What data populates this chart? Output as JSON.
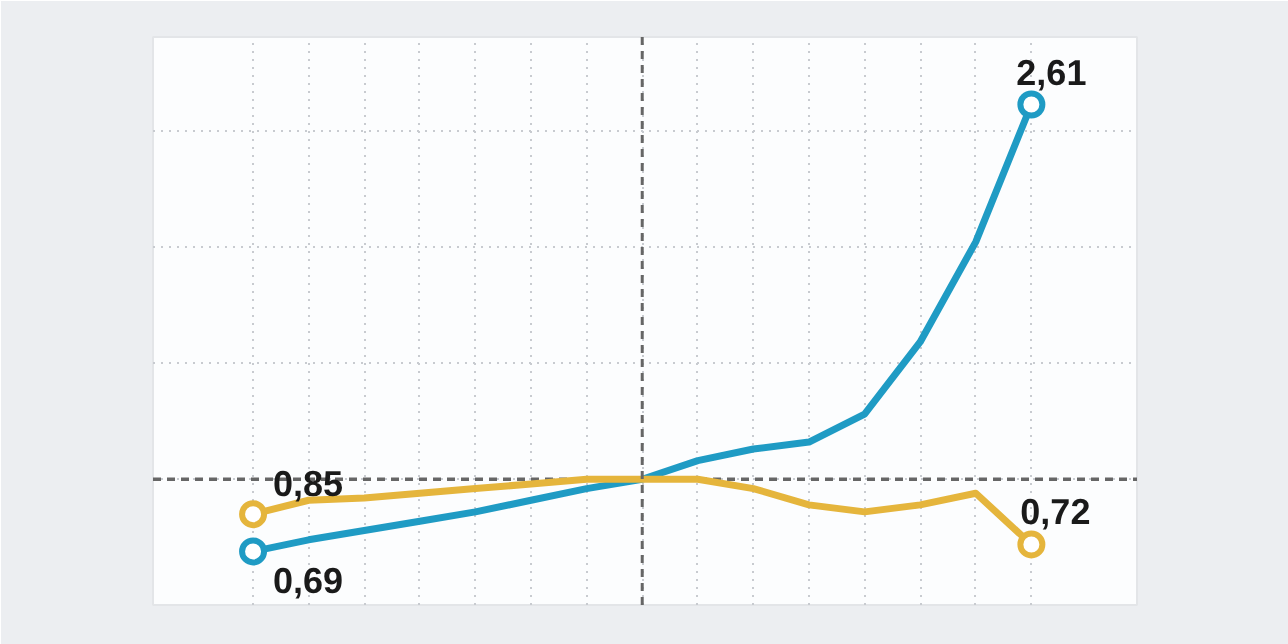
{
  "chart_data": {
    "type": "line",
    "categories": [
      null,
      null,
      null,
      null,
      null,
      null,
      null,
      null,
      null,
      null,
      null,
      null,
      null,
      null,
      null
    ],
    "series": [
      {
        "color": "#1f9bc4",
        "values": [
          0.69,
          0.74,
          0.78,
          0.82,
          0.86,
          0.91,
          0.96,
          1.0,
          1.08,
          1.13,
          1.16,
          1.28,
          1.59,
          2.02,
          2.61
        ],
        "value_labels": [
          "0,69",
          null,
          null,
          null,
          null,
          null,
          null,
          null,
          null,
          null,
          null,
          null,
          null,
          null,
          "2,61"
        ]
      },
      {
        "color": "#e5b53c",
        "values": [
          0.85,
          0.91,
          0.92,
          0.94,
          0.96,
          0.98,
          1.0,
          1.0,
          1.0,
          0.96,
          0.89,
          0.86,
          0.89,
          0.94,
          0.72
        ],
        "value_labels": [
          "0,85",
          null,
          null,
          null,
          null,
          null,
          null,
          null,
          null,
          null,
          null,
          null,
          null,
          null,
          "0,72"
        ]
      }
    ],
    "ylim": [
      0.46,
      2.9
    ],
    "yticks": [
      {
        "value": 1,
        "label": null
      },
      {
        "value": 1.5,
        "label": null
      },
      {
        "value": 2,
        "label": null
      },
      {
        "value": 2.5,
        "label": null
      }
    ],
    "tick_labels": false,
    "grid": true,
    "line_style": "solid",
    "ref_lines": [
      {
        "axis": "y",
        "value": 1,
        "label": null,
        "color": "#666666",
        "line_style": "dashed"
      }
    ]
  }
}
